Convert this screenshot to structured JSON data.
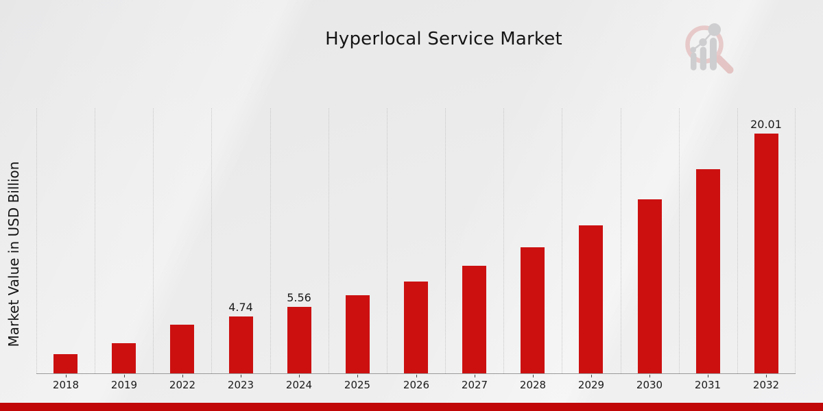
{
  "title": "Hyperlocal Service Market",
  "y_axis_label": "Market Value in USD Billion",
  "chart_data": {
    "type": "bar",
    "title": "Hyperlocal Service Market",
    "xlabel": "",
    "ylabel": "Market Value in USD Billion",
    "categories": [
      "2018",
      "2019",
      "2022",
      "2023",
      "2024",
      "2025",
      "2026",
      "2027",
      "2028",
      "2029",
      "2030",
      "2031",
      "2032"
    ],
    "values": [
      1.58,
      2.53,
      4.05,
      4.74,
      5.56,
      6.52,
      7.66,
      8.99,
      10.55,
      12.38,
      14.53,
      17.05,
      20.01
    ],
    "value_labels": [
      "",
      "",
      "",
      "4.74",
      "5.56",
      "",
      "",
      "",
      "",
      "",
      "",
      "",
      "20.01"
    ],
    "ylim": [
      0,
      22.2
    ],
    "grid": "vertical-dotted-category-boundaries",
    "legend": "none",
    "bar_color": "#cc1010",
    "axis_line_color": "#9a9a9a",
    "gridline_color": "#c6c6c6"
  },
  "footer": {
    "accent_bar_color": "#c10707"
  },
  "logo": {
    "name": "magnifier-bar-chart-watermark",
    "ring_color": "#e6c3c3",
    "glyph_color": "#c8c8cb"
  }
}
